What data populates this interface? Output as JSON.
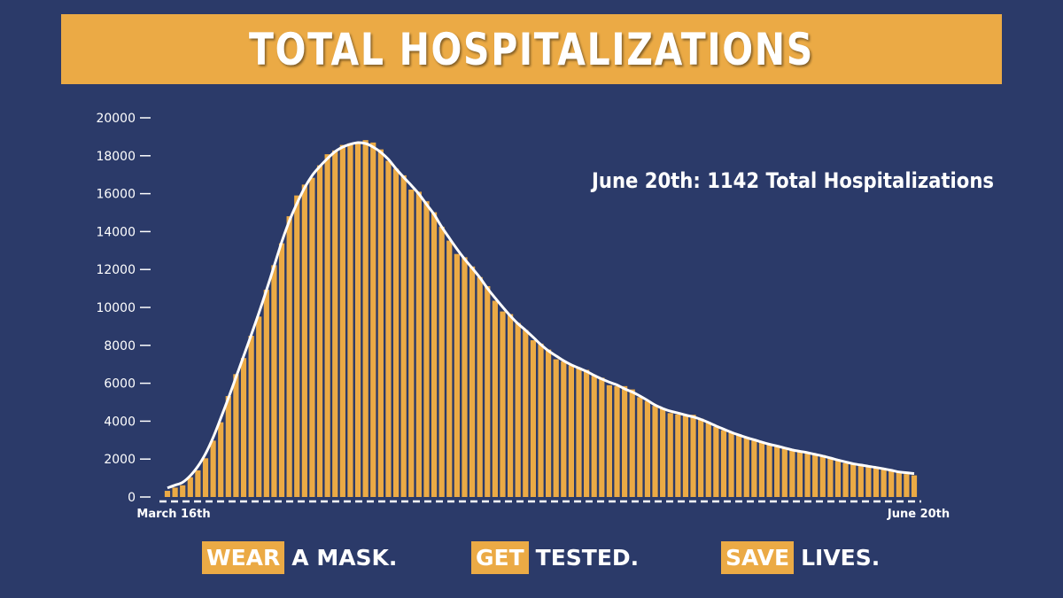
{
  "title": "TOTAL HOSPITALIZATIONS",
  "colors": {
    "background": "#2b3a69",
    "accent": "#ebaa45",
    "bar": "#ebaa45",
    "line": "#ffffff",
    "text": "#ffffff"
  },
  "slogans": [
    {
      "highlight": "WEAR",
      "rest": "A MASK."
    },
    {
      "highlight": "GET",
      "rest": "TESTED."
    },
    {
      "highlight": "SAVE",
      "rest": "LIVES."
    }
  ],
  "chart_data": {
    "type": "bar",
    "title": "",
    "xlabel": "",
    "ylabel": "",
    "ylim": [
      0,
      20000
    ],
    "yticks": [
      0,
      2000,
      4000,
      6000,
      8000,
      10000,
      12000,
      14000,
      16000,
      18000,
      20000
    ],
    "x_start_label": "March 16th",
    "x_end_label": "June 20th",
    "annotation": "June 20th: 1142 Total Hospitalizations",
    "legend": "none",
    "grid": false,
    "trend_line": "smoothed average of series values",
    "series": [
      {
        "values": [
          326,
          496,
          617,
          1042,
          1406,
          2043,
          2974,
          3943,
          5327,
          6481,
          7328,
          8503,
          9517,
          10929,
          12226,
          13383,
          14810,
          15905,
          16479,
          16837,
          17493,
          18079,
          18279,
          18569,
          18654,
          18707,
          18825,
          18697,
          18335,
          17735,
          17316,
          16967,
          16213,
          16103,
          15599,
          15021,
          14258,
          13524,
          12819,
          12646,
          12159,
          11598,
          11121,
          10350,
          9786,
          9647,
          9179,
          8811,
          8268,
          8089,
          7776,
          7262,
          7154,
          6946,
          6786,
          6706,
          6394,
          6290,
          5897,
          5842,
          5848,
          5674,
          5262,
          5063,
          4808,
          4689,
          4425,
          4359,
          4348,
          4335,
          4134,
          3946,
          3704,
          3523,
          3417,
          3304,
          3107,
          2976,
          2882,
          2815,
          2676,
          2555,
          2518,
          2361,
          2306,
          2288,
          2211,
          2071,
          1911,
          1789,
          1768,
          1705,
          1597,
          1571,
          1477,
          1420,
          1356,
          1210,
          1142
        ]
      }
    ]
  }
}
